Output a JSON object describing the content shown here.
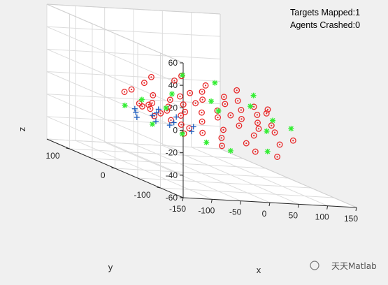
{
  "status": {
    "targets_mapped": "Targets Mapped:1",
    "agents_crashed": "Agents Crashed:0"
  },
  "watermark": {
    "text": "天天Matlab"
  },
  "colors": {
    "figure_bg": "#f0f0f0",
    "axes_bg": "#ffffff",
    "grid": "#dcdcdc",
    "axis_line": "#262626",
    "target_marker": "#e8292a",
    "agent_marker": "#1f5fbf",
    "visited_marker": "#33ee33"
  },
  "chart_data": {
    "type": "scatter",
    "projection": "3d",
    "grid": true,
    "xlabel": "x",
    "ylabel": "y",
    "zlabel": "z",
    "xlim": [
      -150,
      150
    ],
    "ylim": [
      -150,
      150
    ],
    "zlim": [
      -60,
      60
    ],
    "xticks": [
      "-150",
      "-100",
      "-50",
      "0",
      "50",
      "100",
      "150"
    ],
    "yticks": [
      "-100",
      "0",
      "100"
    ],
    "zticks": [
      "-60",
      "-40",
      "-20",
      "0",
      "20",
      "40",
      "60"
    ],
    "series": [
      {
        "marker": "red-circle-dot",
        "points": [
          [
            -100,
            -20,
            10
          ],
          [
            -108,
            0,
            -1
          ],
          [
            -95,
            10,
            -5
          ],
          [
            -90,
            -10,
            -10
          ],
          [
            -85,
            5,
            -6
          ],
          [
            -80,
            15,
            -4
          ],
          [
            -75,
            -5,
            -8
          ],
          [
            -70,
            20,
            -3
          ],
          [
            -65,
            -15,
            -12
          ],
          [
            -60,
            0,
            -6
          ],
          [
            -55,
            -25,
            -14
          ],
          [
            -50,
            10,
            -4
          ],
          [
            -45,
            -30,
            -16
          ],
          [
            -40,
            -5,
            -9
          ],
          [
            -35,
            25,
            0
          ],
          [
            -30,
            -40,
            -18
          ],
          [
            -25,
            5,
            -7
          ],
          [
            -20,
            15,
            -2
          ],
          [
            -15,
            -20,
            -11
          ],
          [
            -10,
            35,
            2
          ],
          [
            -5,
            -50,
            -20
          ],
          [
            0,
            0,
            -6
          ],
          [
            5,
            20,
            -1
          ],
          [
            10,
            -35,
            -15
          ],
          [
            15,
            45,
            4
          ],
          [
            20,
            -10,
            -8
          ],
          [
            25,
            30,
            1
          ],
          [
            30,
            -60,
            -22
          ],
          [
            35,
            10,
            -5
          ],
          [
            40,
            50,
            5
          ],
          [
            45,
            -25,
            -12
          ],
          [
            50,
            0,
            -7
          ],
          [
            55,
            -45,
            -17
          ],
          [
            60,
            25,
            -1
          ],
          [
            65,
            -5,
            -9
          ],
          [
            70,
            40,
            3
          ],
          [
            75,
            -30,
            -13
          ],
          [
            80,
            15,
            -4
          ],
          [
            85,
            -15,
            -10
          ],
          [
            90,
            35,
            1
          ],
          [
            95,
            -40,
            -14
          ],
          [
            100,
            5,
            -6
          ],
          [
            105,
            -20,
            -11
          ],
          [
            110,
            25,
            -2
          ],
          [
            115,
            -55,
            -18
          ],
          [
            120,
            10,
            -5
          ],
          [
            -60,
            50,
            10
          ],
          [
            -20,
            -70,
            -24
          ],
          [
            0,
            60,
            12
          ],
          [
            30,
            -80,
            -26
          ],
          [
            50,
            55,
            10
          ],
          [
            80,
            -70,
            -20
          ],
          [
            -90,
            40,
            5
          ],
          [
            -40,
            60,
            14
          ],
          [
            100,
            50,
            8
          ],
          [
            -70,
            -50,
            -18
          ],
          [
            60,
            -90,
            -28
          ],
          [
            -110,
            30,
            4
          ],
          [
            20,
            70,
            15
          ],
          [
            130,
            20,
            -3
          ]
        ]
      },
      {
        "marker": "blue-plus",
        "points": [
          [
            -120,
            -10,
            -12
          ],
          [
            -110,
            5,
            -10
          ],
          [
            -100,
            20,
            -9
          ],
          [
            -95,
            -20,
            -13
          ],
          [
            -85,
            0,
            -11
          ],
          [
            -75,
            -25,
            -15
          ],
          [
            -70,
            10,
            -10
          ],
          [
            -60,
            -15,
            -14
          ],
          [
            -55,
            25,
            -9
          ],
          [
            -45,
            -35,
            -18
          ],
          [
            -40,
            5,
            -12
          ],
          [
            -30,
            -20,
            -16
          ]
        ]
      },
      {
        "marker": "green-asterisk",
        "points": [
          [
            -125,
            10,
            -5
          ],
          [
            -105,
            -25,
            -15
          ],
          [
            -80,
            30,
            -2
          ],
          [
            -65,
            -40,
            -20
          ],
          [
            -50,
            15,
            -6
          ],
          [
            -35,
            -55,
            -24
          ],
          [
            -20,
            40,
            3
          ],
          [
            -5,
            -70,
            -28
          ],
          [
            10,
            55,
            18
          ],
          [
            25,
            -5,
            -3
          ],
          [
            40,
            30,
            0
          ],
          [
            55,
            -75,
            -26
          ],
          [
            70,
            60,
            12
          ],
          [
            85,
            -35,
            -14
          ],
          [
            100,
            20,
            -1
          ],
          [
            115,
            -10,
            -8
          ],
          [
            125,
            45,
            5
          ],
          [
            135,
            -25,
            -12
          ]
        ]
      }
    ]
  }
}
